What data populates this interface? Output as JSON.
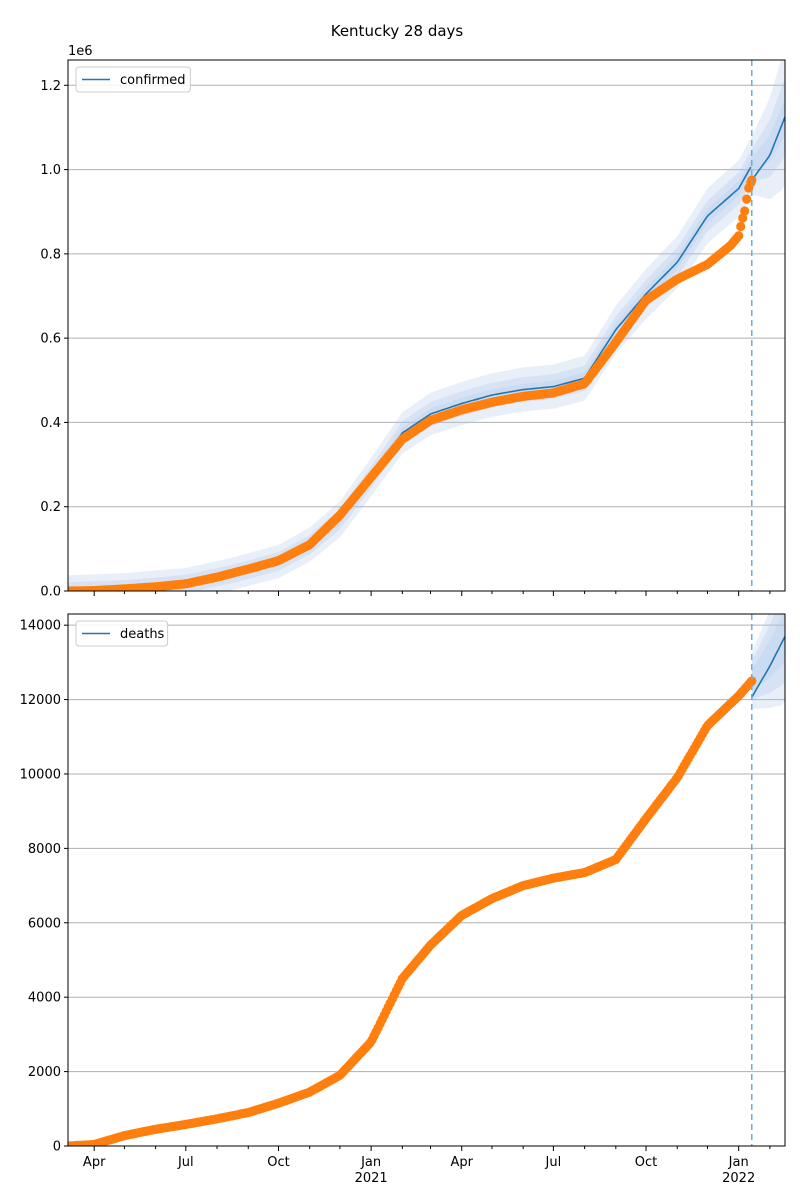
{
  "figure": {
    "title": "Kentucky 28 days"
  },
  "x_axis": {
    "ticks": [
      {
        "date": "2020-04-01",
        "label": "Apr",
        "sub": ""
      },
      {
        "date": "2020-07-01",
        "label": "Jul",
        "sub": ""
      },
      {
        "date": "2020-10-01",
        "label": "Oct",
        "sub": ""
      },
      {
        "date": "2021-01-01",
        "label": "Jan",
        "sub": "2021"
      },
      {
        "date": "2021-04-01",
        "label": "Apr",
        "sub": ""
      },
      {
        "date": "2021-07-01",
        "label": "Jul",
        "sub": ""
      },
      {
        "date": "2021-10-01",
        "label": "Oct",
        "sub": ""
      },
      {
        "date": "2022-01-01",
        "label": "Jan",
        "sub": "2022"
      }
    ],
    "xlim": [
      "2020-03-06",
      "2022-02-16"
    ],
    "forecast_start": "2022-01-14"
  },
  "colors": {
    "model": "#1f77b4",
    "observed": "#ff7f0e",
    "band": "#aec7e8",
    "vline": "#6baed6",
    "grid": "#b0b0b0"
  },
  "chart_data": [
    {
      "type": "line",
      "panel": "confirmed",
      "legend": {
        "entries": [
          "confirmed"
        ],
        "placement": "top-left"
      },
      "y_multiplier_label": "1e6",
      "ylim": [
        0,
        1.26
      ],
      "yticks": [
        {
          "value": 0.0,
          "label": "0.0"
        },
        {
          "value": 0.2,
          "label": "0.2"
        },
        {
          "value": 0.4,
          "label": "0.4"
        },
        {
          "value": 0.6,
          "label": "0.6"
        },
        {
          "value": 0.8,
          "label": "0.8"
        },
        {
          "value": 1.0,
          "label": "1.0"
        },
        {
          "value": 1.2,
          "label": "1.2"
        }
      ],
      "grid": "horizontal",
      "model": {
        "name": "confirmed",
        "x": [
          "2020-03-06",
          "2020-05-01",
          "2020-07-01",
          "2020-08-15",
          "2020-10-01",
          "2020-11-01",
          "2020-12-01",
          "2021-01-01",
          "2021-02-01",
          "2021-03-01",
          "2021-04-01",
          "2021-05-01",
          "2021-06-01",
          "2021-07-01",
          "2021-08-01",
          "2021-09-01",
          "2021-10-01",
          "2021-11-01",
          "2021-12-01",
          "2022-01-01",
          "2022-01-14",
          "2022-02-01",
          "2022-02-16"
        ],
        "y": [
          0.0,
          0.005,
          0.017,
          0.04,
          0.07,
          0.11,
          0.17,
          0.27,
          0.375,
          0.42,
          0.445,
          0.465,
          0.478,
          0.485,
          0.505,
          0.62,
          0.705,
          0.78,
          0.89,
          0.955,
          1.01,
          1.05,
          1.125
        ],
        "band_widths": [
          0.016,
          0.035,
          0.062
        ]
      },
      "observed": {
        "x": [
          "2020-03-06",
          "2020-04-01",
          "2020-05-01",
          "2020-06-01",
          "2020-07-01",
          "2020-08-01",
          "2020-09-01",
          "2020-10-01",
          "2020-11-01",
          "2020-12-01",
          "2021-01-01",
          "2021-02-01",
          "2021-03-01",
          "2021-04-01",
          "2021-05-01",
          "2021-06-01",
          "2021-07-01",
          "2021-08-01",
          "2021-09-01",
          "2021-10-01",
          "2021-11-01",
          "2021-12-01",
          "2021-12-24",
          "2022-01-01",
          "2022-01-02",
          "2022-01-05",
          "2022-01-08",
          "2022-01-10",
          "2022-01-14"
        ],
        "y": [
          0.0,
          0.001,
          0.005,
          0.01,
          0.017,
          0.033,
          0.052,
          0.072,
          0.11,
          0.18,
          0.27,
          0.36,
          0.405,
          0.43,
          0.448,
          0.462,
          0.47,
          0.492,
          0.59,
          0.69,
          0.74,
          0.775,
          0.82,
          0.843,
          0.855,
          0.885,
          0.91,
          0.95,
          0.975
        ]
      }
    },
    {
      "type": "line",
      "panel": "deaths",
      "legend": {
        "entries": [
          "deaths"
        ],
        "placement": "top-left"
      },
      "ylim": [
        0,
        14300
      ],
      "yticks": [
        {
          "value": 0,
          "label": "0"
        },
        {
          "value": 2000,
          "label": "2000"
        },
        {
          "value": 4000,
          "label": "4000"
        },
        {
          "value": 6000,
          "label": "6000"
        },
        {
          "value": 8000,
          "label": "8000"
        },
        {
          "value": 10000,
          "label": "10000"
        },
        {
          "value": 12000,
          "label": "12000"
        },
        {
          "value": 14000,
          "label": "14000"
        }
      ],
      "grid": "horizontal",
      "model": {
        "name": "deaths",
        "x": [
          "2022-01-14",
          "2022-02-01",
          "2022-02-16"
        ],
        "y": [
          12500,
          13100,
          13700
        ],
        "band_widths": [
          250,
          450,
          650
        ]
      },
      "observed": {
        "x": [
          "2020-03-06",
          "2020-04-01",
          "2020-05-01",
          "2020-06-01",
          "2020-07-01",
          "2020-08-01",
          "2020-09-01",
          "2020-10-01",
          "2020-11-01",
          "2020-12-01",
          "2021-01-01",
          "2021-02-01",
          "2021-03-01",
          "2021-04-01",
          "2021-05-01",
          "2021-06-01",
          "2021-07-01",
          "2021-08-01",
          "2021-09-01",
          "2021-10-01",
          "2021-11-01",
          "2021-12-01",
          "2022-01-01",
          "2022-01-14"
        ],
        "y": [
          0,
          40,
          280,
          450,
          580,
          730,
          900,
          1150,
          1450,
          1900,
          2800,
          4500,
          5400,
          6200,
          6650,
          7000,
          7200,
          7350,
          7700,
          8800,
          9900,
          11300,
          12100,
          12500
        ]
      }
    }
  ]
}
